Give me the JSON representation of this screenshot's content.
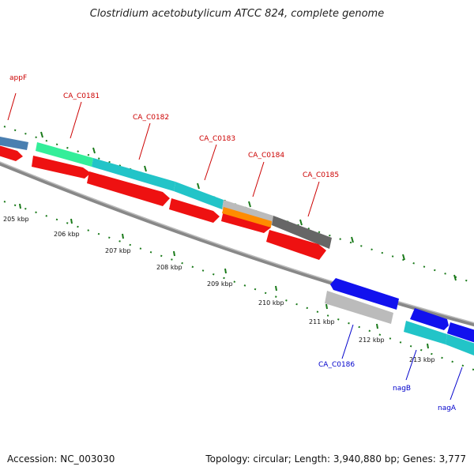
{
  "map": {
    "title": "Clostridium acetobutylicum ATCC 824, complete genome",
    "accession": "Accession: NC_003030",
    "topology": "Topology: circular; Length: 3,940,880 bp; Genes: 3,777"
  },
  "colors": {
    "forward_label": "#cc0000",
    "reverse_label": "#0000cc",
    "tick": "#1a7a1a",
    "backbone": "#888888"
  },
  "scale": {
    "ticks": [
      {
        "label": "205 kbp"
      },
      {
        "label": "206 kbp"
      },
      {
        "label": "207 kbp"
      },
      {
        "label": "208 kbp"
      },
      {
        "label": "209 kbp"
      },
      {
        "label": "210 kbp"
      },
      {
        "label": "211 kbp"
      },
      {
        "label": "212 kbp"
      },
      {
        "label": "213 kbp"
      }
    ]
  },
  "genes": {
    "forward": [
      {
        "name": "appF",
        "color": "#4a7fb0"
      },
      {
        "name": "CA_C0181",
        "color": "#33ee99"
      },
      {
        "name": "CA_C0182",
        "color": "#22c4c8"
      },
      {
        "name": "CA_C0183",
        "color": "#22c4c8"
      },
      {
        "name": "CA_C0184",
        "color": "#bbbbbb"
      },
      {
        "name": "CA_C0185",
        "color": "#666666"
      }
    ],
    "reverse": [
      {
        "name": "CA_C0186",
        "color": "#bbbbbb"
      },
      {
        "name": "nagB",
        "color": "#22c4c8"
      },
      {
        "name": "nagA",
        "color": "#22c4c8"
      }
    ],
    "cds_color": "#ee1111",
    "orange_color": "#ff8c00",
    "blue_cds_color": "#1111ee"
  }
}
